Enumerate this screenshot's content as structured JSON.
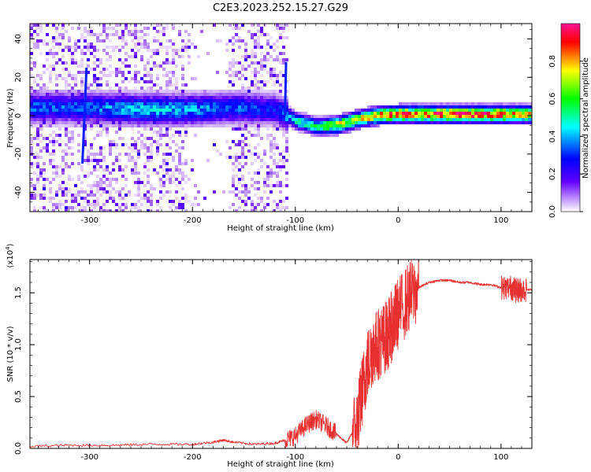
{
  "figure_title": "C2E3.2023.252.15.27.G29",
  "chart_data": [
    {
      "type": "heatmap",
      "xlabel": "Height of straight line (km)",
      "ylabel": "Frequency (Hz)",
      "xlim": [
        -358,
        130
      ],
      "ylim": [
        -50,
        48
      ],
      "x_ticks": [
        -300,
        -200,
        -100,
        0,
        100
      ],
      "y_ticks": [
        -40,
        -20,
        0,
        20,
        40
      ],
      "colorbar": {
        "label": "Normalized spectral amplitude",
        "range": [
          0,
          1
        ],
        "ticks": [
          "0.0",
          "0.2",
          "0.4",
          "0.6",
          "0.8"
        ],
        "colors": [
          "#ffffff",
          "#c8a0ff",
          "#6000ff",
          "#0000ff",
          "#00ffff",
          "#00ff00",
          "#ffff00",
          "#ff0000",
          "#ff1493"
        ]
      },
      "ridge": [
        {
          "x": -358,
          "freq": 5,
          "amp": 0.35
        },
        {
          "x": -300,
          "freq": 5,
          "amp": 0.35
        },
        {
          "x": -250,
          "freq": 4,
          "amp": 0.45
        },
        {
          "x": -200,
          "freq": 4,
          "amp": 0.4
        },
        {
          "x": -160,
          "freq": 5,
          "amp": 0.35
        },
        {
          "x": -120,
          "freq": 4,
          "amp": 0.3
        },
        {
          "x": -100,
          "freq": -2,
          "amp": 0.5
        },
        {
          "x": -80,
          "freq": -5,
          "amp": 0.55
        },
        {
          "x": -60,
          "freq": -4,
          "amp": 0.75
        },
        {
          "x": -40,
          "freq": -1,
          "amp": 0.75
        },
        {
          "x": -20,
          "freq": 1,
          "amp": 0.85
        },
        {
          "x": 0,
          "freq": 1.5,
          "amp": 0.9
        },
        {
          "x": 50,
          "freq": 1.5,
          "amp": 0.95
        },
        {
          "x": 100,
          "freq": 1.5,
          "amp": 0.9
        },
        {
          "x": 130,
          "freq": 1.5,
          "amp": 0.8
        }
      ]
    },
    {
      "type": "line",
      "xlabel": "Height of straight line (km)",
      "ylabel": "SNR (10 * v/v)",
      "y_multiplier": "(x10",
      "y_multiplier_exp": "4",
      "y_multiplier_close": ")",
      "xlim": [
        -358,
        130
      ],
      "ylim": [
        0,
        1.82
      ],
      "x_ticks": [
        -300,
        -200,
        -100,
        0,
        100
      ],
      "y_ticks": [
        "0.0",
        "0.5",
        "1.0",
        "1.5"
      ],
      "y_tick_values": [
        0,
        0.5,
        1.0,
        1.5
      ],
      "line_color": "#e83030",
      "series": [
        {
          "x": [
            -358,
            -320,
            -280,
            -240,
            -200,
            -180,
            -170,
            -160,
            -140,
            -120,
            -110,
            -100,
            -90,
            -80,
            -70,
            -60,
            -50,
            -40,
            -35,
            -30,
            -25,
            -20,
            -15,
            -10,
            -5,
            0,
            10,
            20,
            30,
            40,
            50,
            60,
            70,
            80,
            90,
            100,
            110,
            115,
            120,
            130
          ],
          "y": [
            0.02,
            0.03,
            0.03,
            0.04,
            0.04,
            0.06,
            0.08,
            0.06,
            0.04,
            0.05,
            0.08,
            0.12,
            0.22,
            0.28,
            0.22,
            0.14,
            0.05,
            0.25,
            0.55,
            0.8,
            0.95,
            1.0,
            1.05,
            1.1,
            1.2,
            1.3,
            1.45,
            1.55,
            1.6,
            1.62,
            1.62,
            1.6,
            1.6,
            1.58,
            1.58,
            1.55,
            1.55,
            1.52,
            1.53,
            1.53
          ]
        }
      ]
    }
  ]
}
